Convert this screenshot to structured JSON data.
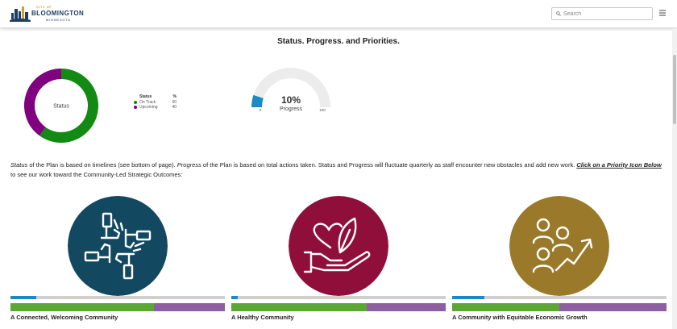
{
  "header": {
    "logo": {
      "city": "CITY OF",
      "name": "BLOOMINGTON",
      "state": "MINNESOTA"
    },
    "search_placeholder": "Search"
  },
  "page_title": "Status. Progress. and Priorities.",
  "status_chart": {
    "center_label": "Status",
    "legend_header": {
      "label": "Status",
      "value": "%"
    },
    "items": [
      {
        "label": "On Track",
        "value": 60,
        "color": "#138a13"
      },
      {
        "label": "Upcoming",
        "value": 40,
        "color": "#800080"
      }
    ]
  },
  "progress_gauge": {
    "value_label": "10%",
    "caption": "Progress",
    "value": 10,
    "min_label": "0",
    "max_label": "100",
    "fill_color": "#1a8ac7",
    "track_color": "#ececec"
  },
  "description": {
    "part1": "Status",
    "part2": " of the Plan is based on timelines (see bottom of page). ",
    "part3": "Progress",
    "part4": " of the Plan is based on total actions taken. Status and Progress will fluctuate quarterly as staff encounter new obstacles and add new work. ",
    "link": "Click on a Priority Icon Below",
    "part5": " to see our work toward the Community-Led Strategic Outcomes:"
  },
  "priorities": [
    {
      "name": "A Connected, Welcoming Community",
      "icon": "joined-hands-icon",
      "color": "#134960",
      "progress": 12,
      "on_track": 67,
      "upcoming": 33
    },
    {
      "name": "A Healthy Community",
      "icon": "hand-heart-leaf-icon",
      "color": "#8f0f3a",
      "progress": 3,
      "on_track": 63,
      "upcoming": 37
    },
    {
      "name": "A Community with Equitable Economic Growth",
      "icon": "people-growth-icon",
      "color": "#9a7a2a",
      "progress": 15,
      "on_track": 50,
      "upcoming": 50
    }
  ]
}
